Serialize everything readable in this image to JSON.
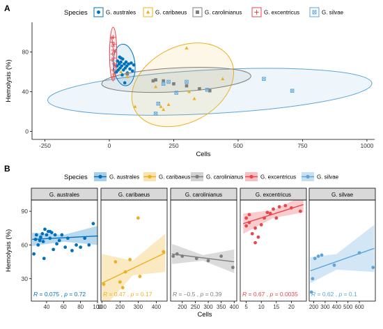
{
  "panel_labels": {
    "a": "A",
    "b": "B"
  },
  "legend_title": "Species",
  "species": [
    {
      "key": "aus",
      "name": "G. australes",
      "color": "#0072BD",
      "marker": "circle"
    },
    {
      "key": "car",
      "name": "G. caribaeus",
      "color": "#EDB120",
      "marker": "triangle"
    },
    {
      "key": "caro",
      "name": "G. carolinianus",
      "color": "#7F7F7F",
      "marker": "square"
    },
    {
      "key": "exc",
      "name": "G. excentricus",
      "color": "#E8474C",
      "marker": "plus"
    },
    {
      "key": "sil",
      "name": "G. silvae",
      "color": "#5DA5DA",
      "marker": "boxx"
    }
  ],
  "chart_data": [
    {
      "type": "scatter",
      "xlabel": "Cells",
      "ylabel": "Hemolysis (%)",
      "xlim": [
        -300,
        1030
      ],
      "ylim": [
        -8,
        110
      ],
      "xticks": [
        -250,
        0,
        250,
        500,
        750,
        1000
      ],
      "yticks": [
        0,
        40,
        80
      ],
      "grid": false,
      "legend": "top",
      "series": [
        {
          "name": "G. australes",
          "points": [
            [
              28,
              60
            ],
            [
              30,
              66
            ],
            [
              32,
              71
            ],
            [
              35,
              62
            ],
            [
              38,
              68
            ],
            [
              40,
              75
            ],
            [
              42,
              64
            ],
            [
              45,
              70
            ],
            [
              48,
              66
            ],
            [
              50,
              57
            ],
            [
              52,
              73
            ],
            [
              55,
              62
            ],
            [
              58,
              68
            ],
            [
              60,
              49
            ],
            [
              62,
              64
            ],
            [
              65,
              70
            ],
            [
              68,
              66
            ],
            [
              70,
              59
            ],
            [
              75,
              68
            ],
            [
              80,
              63
            ],
            [
              85,
              69
            ],
            [
              90,
              61
            ],
            [
              95,
              67
            ],
            [
              40,
              69
            ],
            [
              45,
              74
            ]
          ],
          "ellipse": {
            "cx": 58,
            "cy": 67,
            "rx": 42,
            "ry": 21,
            "angle": -5
          }
        },
        {
          "name": "G. caribaeus",
          "points": [
            [
              100,
              25
            ],
            [
              180,
              45
            ],
            [
              200,
              25
            ],
            [
              210,
              22
            ],
            [
              230,
              27
            ],
            [
              300,
              84
            ],
            [
              310,
              40
            ],
            [
              330,
              33
            ],
            [
              440,
              53
            ],
            [
              45,
              60
            ],
            [
              70,
              55
            ]
          ],
          "ellipse": {
            "cx": 285,
            "cy": 47,
            "rx": 210,
            "ry": 38,
            "angle": -28
          }
        },
        {
          "name": "G. carolinianus",
          "points": [
            [
              170,
              51
            ],
            [
              180,
              52
            ],
            [
              210,
              51
            ],
            [
              250,
              48
            ],
            [
              300,
              46
            ],
            [
              350,
              43
            ],
            [
              390,
              41
            ],
            [
              70,
              58
            ]
          ],
          "ellipse": {
            "cx": 260,
            "cy": 52,
            "rx": 290,
            "ry": 12,
            "angle": -3
          }
        },
        {
          "name": "G. excentricus",
          "points": [
            [
              10,
              94
            ],
            [
              12,
              90
            ],
            [
              14,
              86
            ],
            [
              15,
              95
            ],
            [
              16,
              82
            ],
            [
              18,
              88
            ],
            [
              13,
              78
            ],
            [
              17,
              74
            ],
            [
              19,
              68
            ],
            [
              20,
              80
            ],
            [
              11,
              72
            ],
            [
              15,
              62
            ],
            [
              22,
              66
            ],
            [
              18,
              58
            ],
            [
              14,
              55
            ]
          ],
          "ellipse": {
            "cx": 15,
            "cy": 78,
            "rx": 14,
            "ry": 27,
            "angle": 0
          }
        },
        {
          "name": "G. silvae",
          "points": [
            [
              180,
              18
            ],
            [
              190,
              28
            ],
            [
              210,
              48
            ],
            [
              230,
              50
            ],
            [
              260,
              39
            ],
            [
              300,
              50
            ],
            [
              380,
              42
            ],
            [
              600,
              53
            ],
            [
              710,
              41
            ]
          ],
          "ellipse": {
            "cx": 390,
            "cy": 40,
            "rx": 630,
            "ry": 22,
            "angle": -3
          }
        }
      ]
    },
    {
      "type": "scatter",
      "xlabel": "Cells",
      "ylabel": "Hemolysis (%)",
      "ylim": [
        10,
        100
      ],
      "yticks": [
        30,
        60,
        90
      ],
      "grid": false,
      "legend": "top",
      "facets": [
        {
          "name": "G. australes",
          "xlim": [
            22,
            100
          ],
          "xticks": [
            40,
            60,
            80,
            100
          ],
          "points": [
            [
              25,
              52
            ],
            [
              27,
              65
            ],
            [
              28,
              69
            ],
            [
              30,
              60
            ],
            [
              32,
              64
            ],
            [
              33,
              67
            ],
            [
              35,
              70
            ],
            [
              36,
              63
            ],
            [
              38,
              74
            ],
            [
              40,
              69
            ],
            [
              42,
              72
            ],
            [
              44,
              66
            ],
            [
              46,
              71
            ],
            [
              48,
              56
            ],
            [
              50,
              69
            ],
            [
              52,
              61
            ],
            [
              55,
              64
            ],
            [
              58,
              69
            ],
            [
              62,
              58
            ],
            [
              65,
              66
            ],
            [
              70,
              55
            ],
            [
              75,
              60
            ],
            [
              80,
              58
            ],
            [
              85,
              66
            ],
            [
              90,
              60
            ],
            [
              95,
              79
            ],
            [
              37,
              48
            ],
            [
              44,
              72
            ]
          ],
          "fit": [
            [
              23,
              65
            ],
            [
              100,
              68
            ]
          ],
          "band": [
            [
              23,
              59,
              71
            ],
            [
              60,
              63,
              69
            ],
            [
              100,
              60,
              77
            ]
          ],
          "r": "0.075",
          "p": "0.72"
        },
        {
          "name": "G. caribaeus",
          "xlim": [
            95,
            460
          ],
          "xticks": [
            100,
            200,
            300,
            400
          ],
          "points": [
            [
              110,
              25
            ],
            [
              175,
              45
            ],
            [
              200,
              27
            ],
            [
              215,
              22
            ],
            [
              230,
              36
            ],
            [
              255,
              47
            ],
            [
              300,
              84
            ],
            [
              310,
              32
            ],
            [
              440,
              54
            ]
          ],
          "fit": [
            [
              100,
              26
            ],
            [
              450,
              53
            ]
          ],
          "band": [
            [
              100,
              2,
              52
            ],
            [
              270,
              33,
              46
            ],
            [
              450,
              36,
              70
            ]
          ],
          "r": "0.47",
          "p": "0.17"
        },
        {
          "name": "G. carolinianus",
          "xlim": [
            155,
            410
          ],
          "xticks": [
            200,
            250,
            300,
            350,
            400
          ],
          "points": [
            [
              165,
              50
            ],
            [
              180,
              52
            ],
            [
              200,
              50
            ],
            [
              255,
              48
            ],
            [
              300,
              46
            ],
            [
              350,
              50
            ],
            [
              395,
              40
            ]
          ],
          "fit": [
            [
              160,
              52
            ],
            [
              400,
              45
            ]
          ],
          "band": [
            [
              160,
              43,
              61
            ],
            [
              280,
              46,
              51
            ],
            [
              400,
              35,
              56
            ]
          ],
          "r": "–0.5",
          "p": "0.39"
        },
        {
          "name": "G. excentricus",
          "xlim": [
            3,
            25
          ],
          "xticks": [
            5,
            10,
            15,
            20
          ],
          "points": [
            [
              5,
              77
            ],
            [
              5,
              84
            ],
            [
              6,
              87
            ],
            [
              6,
              80
            ],
            [
              7,
              70
            ],
            [
              8,
              62
            ],
            [
              9,
              67
            ],
            [
              10,
              78
            ],
            [
              11,
              84
            ],
            [
              12,
              89
            ],
            [
              13,
              88
            ],
            [
              14,
              92
            ],
            [
              15,
              84
            ],
            [
              16,
              94
            ],
            [
              18,
              95
            ],
            [
              20,
              93
            ],
            [
              23,
              90
            ],
            [
              8,
              75
            ]
          ],
          "fit": [
            [
              4,
              79
            ],
            [
              24,
              96
            ]
          ],
          "band": [
            [
              4,
              70,
              88
            ],
            [
              14,
              84,
              91
            ],
            [
              24,
              89,
              104
            ]
          ],
          "r": "0.67",
          "p": "0.0035"
        },
        {
          "name": "G. silvae",
          "xlim": [
            160,
            740
          ],
          "xticks": [
            200,
            300,
            400,
            500,
            600
          ],
          "points": [
            [
              180,
              18
            ],
            [
              190,
              30
            ],
            [
              210,
              48
            ],
            [
              240,
              50
            ],
            [
              270,
              51
            ],
            [
              380,
              42
            ],
            [
              600,
              53
            ],
            [
              720,
              40
            ]
          ],
          "fit": [
            [
              170,
              37
            ],
            [
              730,
              57
            ]
          ],
          "band": [
            [
              170,
              26,
              49
            ],
            [
              400,
              38,
              52
            ],
            [
              730,
              36,
              78
            ]
          ],
          "r": "0.62",
          "p": "0.1"
        }
      ]
    }
  ]
}
